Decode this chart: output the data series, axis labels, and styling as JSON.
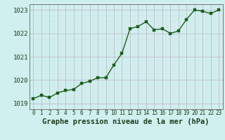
{
  "x": [
    0,
    1,
    2,
    3,
    4,
    5,
    6,
    7,
    8,
    9,
    10,
    11,
    12,
    13,
    14,
    15,
    16,
    17,
    18,
    19,
    20,
    21,
    22,
    23
  ],
  "y": [
    1019.2,
    1019.35,
    1019.25,
    1019.45,
    1019.55,
    1019.6,
    1019.85,
    1019.95,
    1020.1,
    1020.1,
    1020.65,
    1021.15,
    1022.2,
    1022.3,
    1022.5,
    1022.15,
    1022.2,
    1022.0,
    1022.1,
    1022.6,
    1023.0,
    1022.95,
    1022.85,
    1023.0
  ],
  "line_color": "#1e5c1e",
  "marker_color": "#1e5c1e",
  "bg_color": "#cff0ee",
  "grid_color_major": "#c0b8cc",
  "grid_color_minor": "#dcd8e4",
  "xlabel": "Graphe pression niveau de la mer (hPa)",
  "ylim": [
    1018.75,
    1023.25
  ],
  "yticks": [
    1019,
    1020,
    1021,
    1022,
    1023
  ],
  "xticks": [
    0,
    1,
    2,
    3,
    4,
    5,
    6,
    7,
    8,
    9,
    10,
    11,
    12,
    13,
    14,
    15,
    16,
    17,
    18,
    19,
    20,
    21,
    22,
    23
  ],
  "xlabel_fontsize": 7.5,
  "ytick_fontsize": 6.5,
  "xtick_fontsize": 5.5,
  "line_width": 1.0,
  "marker_size": 2.5
}
